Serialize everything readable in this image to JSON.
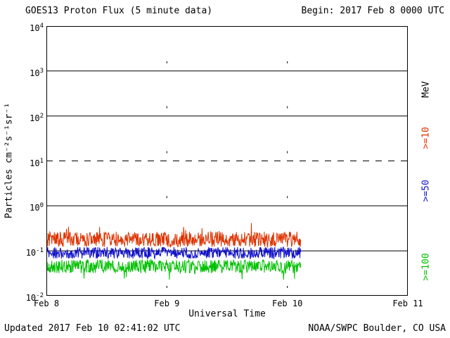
{
  "header": {
    "title": "GOES13 Proton Flux (5 minute data)",
    "begin_label": "Begin: 2017 Feb 8 0000 UTC"
  },
  "footer": {
    "updated_label": "Updated 2017 Feb 10 02:41:02 UTC",
    "source_label": "NOAA/SWPC Boulder, CO USA"
  },
  "right_labels": [
    {
      "text": "MeV",
      "color": "#000000"
    },
    {
      "text": ">=10",
      "color": "#dd3300"
    },
    {
      "text": ">=50",
      "color": "#1111cc"
    },
    {
      "text": ">=100",
      "color": "#00c000"
    }
  ],
  "chart_data": {
    "type": "line",
    "title": "GOES13 Proton Flux (5 minute data)",
    "xlabel": "Universal Time",
    "ylabel": "Particles cm⁻²s⁻¹sr⁻¹",
    "y_scale": "log",
    "ylim": [
      0.01,
      10000
    ],
    "y_tick_exponents": [
      4,
      3,
      2,
      1,
      0,
      -1,
      -2
    ],
    "x_ticks": [
      "Feb 8",
      "Feb 9",
      "Feb 10",
      "Feb 11"
    ],
    "x_span_days": 3,
    "begin": "2017 Feb 8 0000 UTC",
    "updated": "2017 Feb 10 02:41:02 UTC",
    "data_end_day": 2.112,
    "sample_interval_minutes": 5,
    "solid_gridlines": [
      1000,
      100,
      1,
      0.1
    ],
    "dashed_gridlines": [
      10
    ],
    "day_gridlines": [
      1,
      2
    ],
    "unit_label": "MeV",
    "seed": 20170208,
    "series": [
      {
        "name": ">=10 MeV",
        "color": "#dd3300",
        "baseline_flux": 0.18,
        "observed_range": [
          0.1,
          0.55
        ],
        "noise_log10": 0.17,
        "spike_prob": 0.02,
        "spike_log10": 0.3
      },
      {
        "name": ">=50 MeV",
        "color": "#1111cc",
        "baseline_flux": 0.09,
        "observed_range": [
          0.06,
          0.15
        ],
        "noise_log10": 0.13,
        "spike_prob": 0.0,
        "spike_log10": 0.0
      },
      {
        "name": ">=100 MeV",
        "color": "#00c000",
        "baseline_flux": 0.045,
        "observed_range": [
          0.02,
          0.08
        ],
        "noise_log10": 0.15,
        "spike_prob": 0.03,
        "spike_log10": -0.25
      }
    ]
  }
}
